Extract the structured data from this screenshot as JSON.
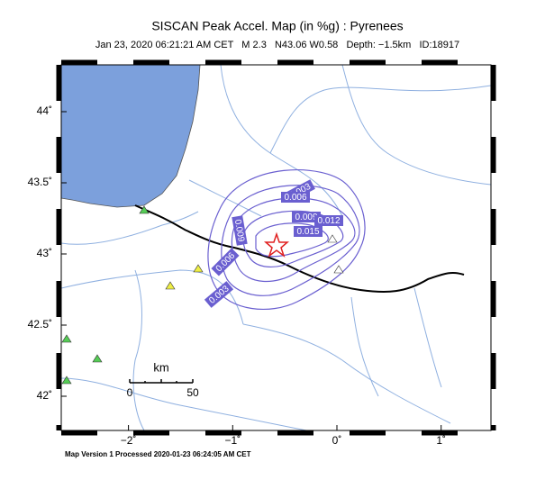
{
  "title": "SISCAN Peak Accel. Map (in %g) : Pyrenees",
  "subtitle": "Jan 23, 2020 06:21:21 AM CET   M 2.3   N43.06 W0.58   Depth: −1.5km   ID:18917",
  "xticks": [
    {
      "value": -2,
      "label": "−2˚"
    },
    {
      "value": -1,
      "label": "−1˚"
    },
    {
      "value": 0,
      "label": "0˚"
    },
    {
      "value": 1,
      "label": "1˚"
    }
  ],
  "yticks": [
    {
      "value": 44,
      "label": "44˚"
    },
    {
      "value": 43.5,
      "label": "43.5˚"
    },
    {
      "value": 43,
      "label": "43˚"
    },
    {
      "value": 42.5,
      "label": "42.5˚"
    },
    {
      "value": 42,
      "label": "42˚"
    }
  ],
  "contour_labels": [
    0.003,
    0.006,
    0.009,
    0.012,
    0.015,
    0.009,
    0.006,
    0.003
  ],
  "scale": {
    "title": "km",
    "labels": [
      0,
      50
    ]
  },
  "footer": "Map Version 1 Processed 2020-01-23 06:24:05 AM CET"
}
